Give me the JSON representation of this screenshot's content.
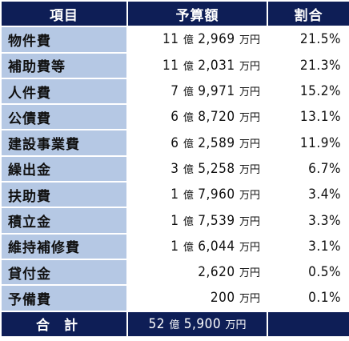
{
  "header": {
    "item": "項目",
    "amount": "予算額",
    "ratio": "割合"
  },
  "rows": [
    {
      "item": "物件費",
      "oku": "11",
      "man": "2,969",
      "ratio": "21.5%"
    },
    {
      "item": "補助費等",
      "oku": "11",
      "man": "2,031",
      "ratio": "21.3%"
    },
    {
      "item": "人件費",
      "oku": "7",
      "man": "9,971",
      "ratio": "15.2%"
    },
    {
      "item": "公債費",
      "oku": "6",
      "man": "8,720",
      "ratio": "13.1%"
    },
    {
      "item": "建設事業費",
      "oku": "6",
      "man": "2,589",
      "ratio": "11.9%"
    },
    {
      "item": "繰出金",
      "oku": "3",
      "man": "5,258",
      "ratio": "6.7%"
    },
    {
      "item": "扶助費",
      "oku": "1",
      "man": "7,960",
      "ratio": "3.4%"
    },
    {
      "item": "積立金",
      "oku": "1",
      "man": "7,539",
      "ratio": "3.3%"
    },
    {
      "item": "維持補修費",
      "oku": "1",
      "man": "6,044",
      "ratio": "3.1%"
    },
    {
      "item": "貸付金",
      "oku": "",
      "man": "2,620",
      "ratio": "0.5%"
    },
    {
      "item": "予備費",
      "oku": "",
      "man": "200",
      "ratio": "0.1%"
    }
  ],
  "units": {
    "oku": "億",
    "man": "万円"
  },
  "total": {
    "label": "合計",
    "oku": "52",
    "man": "5,900"
  }
}
